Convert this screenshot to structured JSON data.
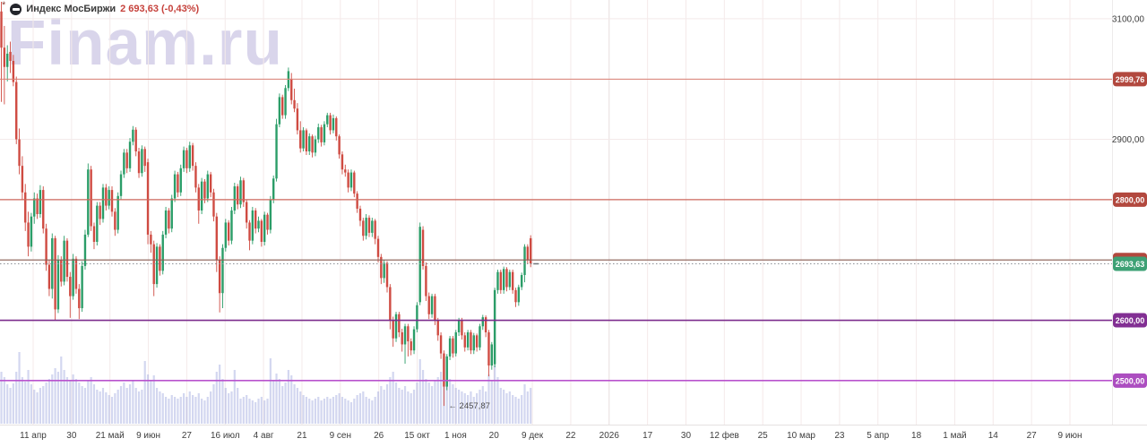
{
  "header": {
    "asterisk": "*",
    "icon": "moex-instrument-icon",
    "title": "Индекс МосБиржи",
    "price": "2 693,63",
    "change": "(-0,43%)"
  },
  "watermark": "Finam.ru",
  "colors": {
    "up": "#2b9d68",
    "down": "#cf4b42",
    "volume": "rgba(140,150,215,0.38)",
    "grid": "#f4eaea",
    "grid_year": "#e8dcdc",
    "axis_text": "#3d3d3d",
    "separator": "#e5e1e1",
    "axis_border": "#edebeb",
    "annotation": "#4c4c4c",
    "last_tick": "#6f757a",
    "badge_text": "#ffffff"
  },
  "chart_data": {
    "type": "candlestick",
    "title": "Индекс МосБиржи",
    "last_price": "2 693,63",
    "change_pct": "-0,43%",
    "ohlc_format": [
      "open",
      "high",
      "low",
      "close",
      "volume_px"
    ],
    "y_range": {
      "min": 2427,
      "max": 3131
    },
    "x_start": -1.8,
    "x_step": 3.337,
    "grid_horizontal_step": 100,
    "y_tick_labels": [
      {
        "price": 3100,
        "label": "3100,00"
      },
      {
        "price": 2900,
        "label": "2900,00"
      }
    ],
    "x_tick_labels": [
      "11 апр",
      "30",
      "21 май",
      "9 июн",
      "27",
      "16 июл",
      "4 авг",
      "21",
      "9 сен",
      "26",
      "15 окт",
      "1 ноя",
      "20",
      "9 дек",
      "22",
      "2026",
      "17",
      "30",
      "12 фев",
      "25",
      "10 мар",
      "23",
      "5 апр",
      "18",
      "1 май",
      "14",
      "27",
      "9 июн"
    ],
    "levels": [
      {
        "price": 2999.76,
        "label": "2999,76",
        "line_color": "#d98075",
        "badge_color": "#b2483e",
        "width": 1
      },
      {
        "price": 2800,
        "label": "2800,00",
        "line_color": "#cd685d",
        "badge_color": "#b2483e",
        "width": 1.2
      },
      {
        "price": 2700,
        "label": "2700,00",
        "line_color": "#8a5f55",
        "badge_color": "#b2483e",
        "width": 1.2
      },
      {
        "price": 2600,
        "label": "2600,00",
        "line_color": "#7b2c8d",
        "badge_color": "#822f93",
        "width": 1.6
      },
      {
        "price": 2500,
        "label": "2500,00",
        "line_color": "#b953cd",
        "badge_color": "#ac4ec0",
        "width": 1.6
      }
    ],
    "current_price": {
      "price": 2693.63,
      "label": "2693,63",
      "badge_color": "#3da175",
      "line_color": "#8b9196"
    },
    "annotation": {
      "arrow": "←",
      "text": "2457,87",
      "price": 2457.87,
      "candle_index": 149
    },
    "candles": [
      [
        2905,
        2962,
        2742,
        2790,
        62
      ],
      [
        3112,
        3128,
        2962,
        3052,
        58
      ],
      [
        3052,
        3088,
        2958,
        3020,
        52
      ],
      [
        3020,
        3056,
        2996,
        3042,
        44
      ],
      [
        3045,
        3062,
        3010,
        3030,
        40
      ],
      [
        3030,
        3040,
        2988,
        2995,
        45
      ],
      [
        2995,
        3004,
        2892,
        2900,
        58
      ],
      [
        2900,
        2918,
        2842,
        2856,
        80
      ],
      [
        2856,
        2872,
        2800,
        2812,
        52
      ],
      [
        2812,
        2826,
        2748,
        2762,
        47
      ],
      [
        2762,
        2780,
        2706,
        2722,
        60
      ],
      [
        2722,
        2778,
        2714,
        2772,
        44
      ],
      [
        2772,
        2812,
        2760,
        2802,
        38
      ],
      [
        2802,
        2810,
        2768,
        2776,
        35
      ],
      [
        2776,
        2824,
        2770,
        2816,
        40
      ],
      [
        2816,
        2822,
        2744,
        2752,
        42
      ],
      [
        2752,
        2760,
        2682,
        2692,
        46
      ],
      [
        2692,
        2700,
        2640,
        2652,
        50
      ],
      [
        2652,
        2744,
        2636,
        2736,
        55
      ],
      [
        2736,
        2740,
        2600,
        2618,
        62
      ],
      [
        2618,
        2708,
        2612,
        2700,
        58
      ],
      [
        2700,
        2706,
        2656,
        2664,
        75
      ],
      [
        2664,
        2740,
        2658,
        2732,
        60
      ],
      [
        2732,
        2736,
        2664,
        2672,
        52
      ],
      [
        2672,
        2680,
        2604,
        2640,
        48
      ],
      [
        2640,
        2710,
        2634,
        2702,
        55
      ],
      [
        2702,
        2706,
        2644,
        2652,
        50
      ],
      [
        2652,
        2660,
        2602,
        2620,
        46
      ],
      [
        2620,
        2698,
        2614,
        2690,
        42
      ],
      [
        2690,
        2750,
        2684,
        2742,
        40
      ],
      [
        2742,
        2860,
        2738,
        2850,
        48
      ],
      [
        2850,
        2856,
        2748,
        2756,
        52
      ],
      [
        2756,
        2762,
        2718,
        2730,
        44
      ],
      [
        2730,
        2796,
        2724,
        2790,
        38
      ],
      [
        2790,
        2796,
        2758,
        2768,
        36
      ],
      [
        2768,
        2826,
        2762,
        2820,
        40
      ],
      [
        2820,
        2826,
        2782,
        2790,
        35
      ],
      [
        2790,
        2822,
        2784,
        2816,
        32
      ],
      [
        2816,
        2822,
        2772,
        2780,
        30
      ],
      [
        2780,
        2786,
        2740,
        2750,
        34
      ],
      [
        2750,
        2812,
        2744,
        2806,
        38
      ],
      [
        2806,
        2848,
        2800,
        2842,
        42
      ],
      [
        2842,
        2884,
        2836,
        2878,
        46
      ],
      [
        2878,
        2884,
        2844,
        2852,
        40
      ],
      [
        2852,
        2902,
        2846,
        2896,
        44
      ],
      [
        2896,
        2922,
        2890,
        2916,
        48
      ],
      [
        2916,
        2920,
        2872,
        2880,
        40
      ],
      [
        2880,
        2886,
        2836,
        2844,
        36
      ],
      [
        2844,
        2890,
        2838,
        2884,
        38
      ],
      [
        2884,
        2888,
        2846,
        2856,
        70
      ],
      [
        2862,
        2868,
        2726,
        2742,
        55
      ],
      [
        2742,
        2748,
        2712,
        2726,
        48
      ],
      [
        2726,
        2732,
        2640,
        2660,
        54
      ],
      [
        2660,
        2728,
        2654,
        2722,
        40
      ],
      [
        2722,
        2726,
        2674,
        2682,
        36
      ],
      [
        2682,
        2748,
        2676,
        2742,
        34
      ],
      [
        2742,
        2788,
        2736,
        2782,
        30
      ],
      [
        2782,
        2786,
        2744,
        2752,
        28
      ],
      [
        2752,
        2808,
        2746,
        2802,
        32
      ],
      [
        2802,
        2848,
        2796,
        2842,
        30
      ],
      [
        2842,
        2846,
        2804,
        2812,
        28
      ],
      [
        2812,
        2858,
        2806,
        2852,
        30
      ],
      [
        2852,
        2888,
        2846,
        2882,
        34
      ],
      [
        2882,
        2886,
        2844,
        2852,
        30
      ],
      [
        2852,
        2896,
        2846,
        2890,
        36
      ],
      [
        2890,
        2894,
        2848,
        2856,
        32
      ],
      [
        2856,
        2862,
        2812,
        2820,
        30
      ],
      [
        2820,
        2826,
        2760,
        2782,
        34
      ],
      [
        2782,
        2836,
        2776,
        2830,
        28
      ],
      [
        2830,
        2834,
        2794,
        2802,
        26
      ],
      [
        2802,
        2848,
        2796,
        2842,
        30
      ],
      [
        2842,
        2846,
        2804,
        2812,
        36
      ],
      [
        2812,
        2818,
        2764,
        2772,
        44
      ],
      [
        2772,
        2778,
        2680,
        2700,
        58
      ],
      [
        2700,
        2706,
        2613,
        2645,
        66
      ],
      [
        2645,
        2726,
        2620,
        2720,
        50
      ],
      [
        2720,
        2768,
        2714,
        2762,
        40
      ],
      [
        2762,
        2766,
        2724,
        2732,
        34
      ],
      [
        2732,
        2788,
        2726,
        2782,
        36
      ],
      [
        2782,
        2828,
        2776,
        2822,
        60
      ],
      [
        2822,
        2826,
        2784,
        2792,
        40
      ],
      [
        2792,
        2838,
        2786,
        2832,
        28
      ],
      [
        2832,
        2836,
        2788,
        2796,
        30
      ],
      [
        2796,
        2800,
        2752,
        2762,
        32
      ],
      [
        2762,
        2766,
        2716,
        2732,
        28
      ],
      [
        2732,
        2788,
        2726,
        2782,
        26
      ],
      [
        2782,
        2786,
        2744,
        2752,
        24
      ],
      [
        2752,
        2772,
        2746,
        2765,
        28
      ],
      [
        2765,
        2768,
        2722,
        2730,
        30
      ],
      [
        2730,
        2780,
        2724,
        2775,
        26
      ],
      [
        2775,
        2778,
        2742,
        2750,
        28
      ],
      [
        2750,
        2806,
        2744,
        2800,
        73
      ],
      [
        2800,
        2840,
        2794,
        2835,
        48
      ],
      [
        2835,
        2934,
        2830,
        2925,
        56
      ],
      [
        2925,
        2976,
        2920,
        2970,
        50
      ],
      [
        2970,
        2974,
        2934,
        2940,
        42
      ],
      [
        2940,
        2990,
        2934,
        2985,
        46
      ],
      [
        2985,
        3019,
        2980,
        3013,
        60
      ],
      [
        3000,
        3010,
        2958,
        2965,
        54
      ],
      [
        2965,
        2984,
        2945,
        2951,
        44
      ],
      [
        2951,
        2960,
        2908,
        2915,
        40
      ],
      [
        2915,
        2930,
        2878,
        2885,
        36
      ],
      [
        2885,
        2920,
        2880,
        2915,
        32
      ],
      [
        2915,
        2918,
        2874,
        2880,
        30
      ],
      [
        2880,
        2910,
        2874,
        2905,
        28
      ],
      [
        2905,
        2908,
        2870,
        2878,
        26
      ],
      [
        2878,
        2906,
        2872,
        2900,
        28
      ],
      [
        2900,
        2926,
        2894,
        2920,
        30
      ],
      [
        2920,
        2924,
        2888,
        2895,
        26
      ],
      [
        2895,
        2930,
        2890,
        2925,
        28
      ],
      [
        2925,
        2944,
        2920,
        2940,
        30
      ],
      [
        2940,
        2944,
        2908,
        2915,
        28
      ],
      [
        2915,
        2941,
        2910,
        2935,
        30
      ],
      [
        2935,
        2938,
        2898,
        2905,
        32
      ],
      [
        2905,
        2908,
        2868,
        2875,
        34
      ],
      [
        2875,
        2880,
        2842,
        2850,
        30
      ],
      [
        2850,
        2858,
        2838,
        2845,
        28
      ],
      [
        2845,
        2850,
        2812,
        2820,
        26
      ],
      [
        2820,
        2850,
        2814,
        2845,
        24
      ],
      [
        2845,
        2848,
        2804,
        2810,
        28
      ],
      [
        2810,
        2814,
        2778,
        2785,
        32
      ],
      [
        2785,
        2790,
        2756,
        2765,
        34
      ],
      [
        2765,
        2770,
        2732,
        2740,
        36
      ],
      [
        2740,
        2776,
        2734,
        2770,
        30
      ],
      [
        2770,
        2774,
        2738,
        2745,
        28
      ],
      [
        2745,
        2770,
        2738,
        2765,
        26
      ],
      [
        2765,
        2768,
        2726,
        2735,
        30
      ],
      [
        2735,
        2740,
        2696,
        2705,
        36
      ],
      [
        2705,
        2710,
        2660,
        2670,
        42
      ],
      [
        2670,
        2700,
        2662,
        2695,
        38
      ],
      [
        2695,
        2698,
        2646,
        2655,
        44
      ],
      [
        2655,
        2660,
        2585,
        2600,
        52
      ],
      [
        2600,
        2606,
        2556,
        2570,
        58
      ],
      [
        2570,
        2614,
        2564,
        2610,
        46
      ],
      [
        2610,
        2614,
        2572,
        2580,
        40
      ],
      [
        2580,
        2586,
        2548,
        2560,
        38
      ],
      [
        2560,
        2594,
        2528,
        2590,
        42
      ],
      [
        2590,
        2594,
        2540,
        2565,
        36
      ],
      [
        2565,
        2570,
        2542,
        2550,
        34
      ],
      [
        2550,
        2590,
        2544,
        2585,
        38
      ],
      [
        2585,
        2630,
        2580,
        2625,
        46
      ],
      [
        2630,
        2762,
        2625,
        2755,
        72
      ],
      [
        2750,
        2756,
        2684,
        2690,
        60
      ],
      [
        2690,
        2696,
        2632,
        2640,
        50
      ],
      [
        2640,
        2646,
        2602,
        2610,
        46
      ],
      [
        2610,
        2644,
        2604,
        2640,
        42
      ],
      [
        2640,
        2644,
        2592,
        2600,
        48
      ],
      [
        2600,
        2604,
        2566,
        2575,
        52
      ],
      [
        2575,
        2580,
        2536,
        2545,
        58
      ],
      [
        2545,
        2550,
        2458,
        2490,
        75
      ],
      [
        2490,
        2544,
        2484,
        2540,
        62
      ],
      [
        2540,
        2574,
        2534,
        2570,
        50
      ],
      [
        2570,
        2574,
        2538,
        2545,
        44
      ],
      [
        2545,
        2584,
        2540,
        2580,
        40
      ],
      [
        2580,
        2604,
        2574,
        2600,
        38
      ],
      [
        2600,
        2604,
        2568,
        2575,
        36
      ],
      [
        2575,
        2580,
        2548,
        2555,
        34
      ],
      [
        2555,
        2584,
        2550,
        2580,
        32
      ],
      [
        2580,
        2584,
        2544,
        2550,
        36
      ],
      [
        2550,
        2579,
        2544,
        2575,
        30
      ],
      [
        2575,
        2578,
        2548,
        2555,
        34
      ],
      [
        2555,
        2594,
        2550,
        2590,
        38
      ],
      [
        2590,
        2609,
        2584,
        2605,
        42
      ],
      [
        2605,
        2608,
        2572,
        2580,
        36
      ],
      [
        2580,
        2584,
        2507,
        2525,
        55
      ],
      [
        2525,
        2564,
        2518,
        2560,
        48
      ],
      [
        2527,
        2654,
        2522,
        2650,
        65
      ],
      [
        2650,
        2684,
        2644,
        2680,
        52
      ],
      [
        2680,
        2684,
        2644,
        2650,
        40
      ],
      [
        2650,
        2689,
        2644,
        2685,
        38
      ],
      [
        2685,
        2688,
        2648,
        2655,
        34
      ],
      [
        2655,
        2684,
        2650,
        2680,
        36
      ],
      [
        2680,
        2684,
        2644,
        2650,
        32
      ],
      [
        2650,
        2654,
        2622,
        2630,
        30
      ],
      [
        2630,
        2659,
        2624,
        2655,
        28
      ],
      [
        2655,
        2679,
        2650,
        2675,
        32
      ],
      [
        2675,
        2726,
        2663,
        2722,
        44
      ],
      [
        2722,
        2726,
        2694,
        2700,
        36
      ],
      [
        2736,
        2741,
        2688,
        2694,
        40
      ]
    ]
  }
}
